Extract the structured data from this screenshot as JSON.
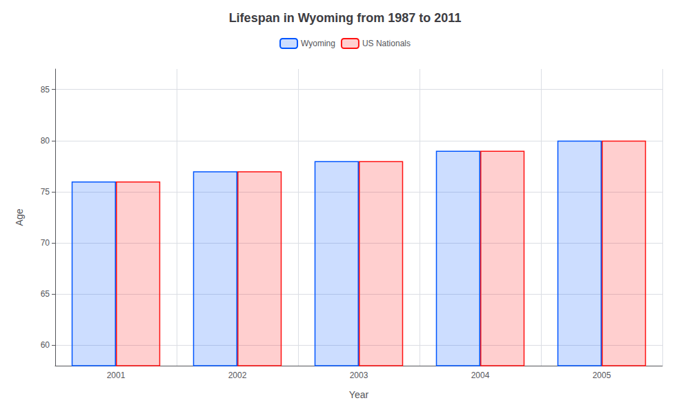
{
  "chart_data": {
    "type": "bar",
    "title": "Lifespan in Wyoming from 1987 to 2011",
    "x_label": "Year",
    "y_label": "Age",
    "categories": [
      "2001",
      "2002",
      "2003",
      "2004",
      "2005"
    ],
    "series": [
      {
        "name": "Wyoming",
        "color": "#0055ff",
        "values": [
          76,
          77,
          78,
          79,
          80
        ]
      },
      {
        "name": "US Nationals",
        "color": "#ff1111",
        "values": [
          76,
          77,
          78,
          79,
          80
        ]
      }
    ],
    "ylim": [
      58,
      87
    ],
    "yticks": [
      60,
      65,
      70,
      75,
      80,
      85
    ],
    "grid": true,
    "legend": "top"
  }
}
